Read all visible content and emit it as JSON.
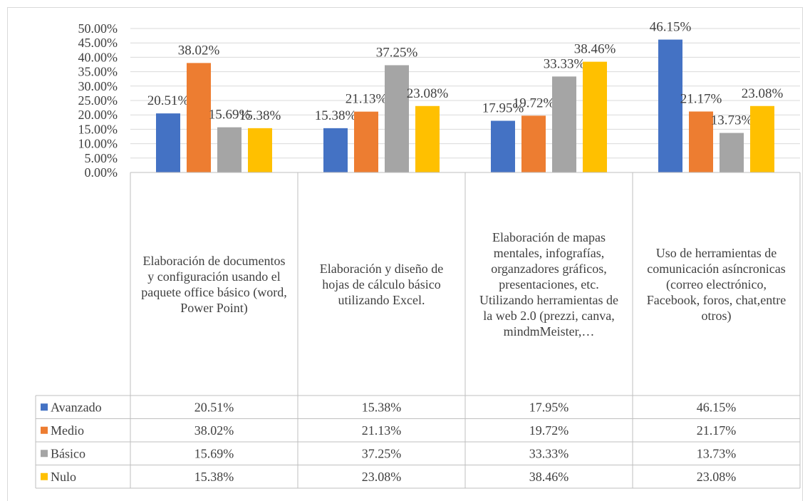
{
  "chart_data": {
    "type": "bar",
    "categories": [
      "Elaboración de documentos y configuración usando el paquete office básico (word, Power Point)",
      "Elaboración y diseño de hojas de cálculo básico utilizando Excel.",
      "Elaboración de mapas mentales, infografías, organzadores gráficos, presentaciones, etc. Utilizando herramientas de la web 2.0 (prezzi, canva, mindmMeister,…",
      "Uso de herramientas de comunicación asíncronicas (correo electrónico, Facebook, foros, chat,entre otros)"
    ],
    "series": [
      {
        "name": "Avanzado",
        "color": "#4472c4",
        "values": [
          20.51,
          15.38,
          17.95,
          46.15
        ],
        "value_labels": [
          "20.51%",
          "15.38%",
          "17.95%",
          "46.15%"
        ]
      },
      {
        "name": "Medio",
        "color": "#ed7d31",
        "values": [
          38.02,
          21.13,
          19.72,
          21.17
        ],
        "value_labels": [
          "38.02%",
          "21.13%",
          "19.72%",
          "21.17%"
        ]
      },
      {
        "name": "Básico",
        "color": "#a5a5a5",
        "values": [
          15.69,
          37.25,
          33.33,
          13.73
        ],
        "value_labels": [
          "15.69%",
          "37.25%",
          "33.33%",
          "13.73%"
        ]
      },
      {
        "name": "Nulo",
        "color": "#ffc000",
        "values": [
          15.38,
          23.08,
          38.46,
          23.08
        ],
        "value_labels": [
          "15.38%",
          "23.08%",
          "38.46%",
          "23.08%"
        ]
      }
    ],
    "ylim": [
      0,
      50
    ],
    "yticks": [
      {
        "value": 0,
        "label": "0.00%"
      },
      {
        "value": 5,
        "label": "5.00%"
      },
      {
        "value": 10,
        "label": "10.00%"
      },
      {
        "value": 15,
        "label": "15.00%"
      },
      {
        "value": 20,
        "label": "20.00%"
      },
      {
        "value": 25,
        "label": "25.00%"
      },
      {
        "value": 30,
        "label": "30.00%"
      },
      {
        "value": 35,
        "label": "35.00%"
      },
      {
        "value": 40,
        "label": "40.00%"
      },
      {
        "value": 45,
        "label": "45.00%"
      },
      {
        "value": 50,
        "label": "50.00%"
      }
    ],
    "grid": true,
    "data_table": true
  }
}
